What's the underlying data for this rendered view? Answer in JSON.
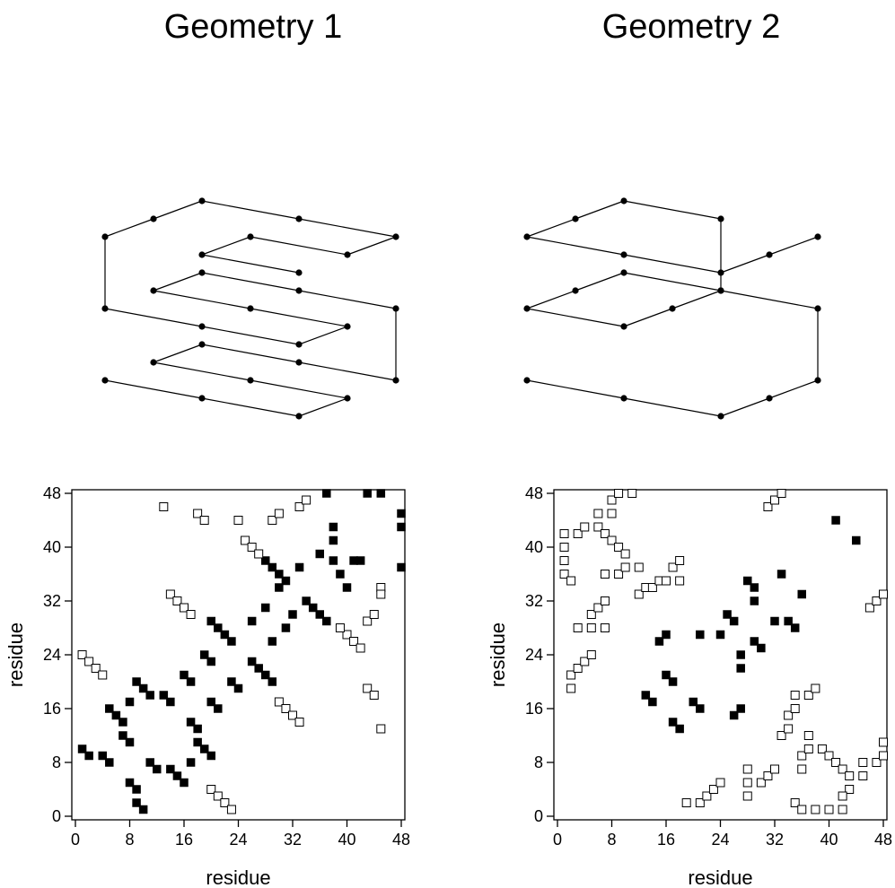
{
  "panels": [
    {
      "title": "Geometry 1"
    },
    {
      "title": "Geometry 2"
    }
  ],
  "chart_data": [
    {
      "type": "line",
      "title": "Geometry 1",
      "description_kind": "3d-lattice-chain",
      "points_3d": [
        [
          0,
          0,
          0
        ],
        [
          1,
          0,
          0
        ],
        [
          2,
          0,
          0
        ],
        [
          2,
          1,
          0
        ],
        [
          1,
          1,
          0
        ],
        [
          0,
          1,
          0
        ],
        [
          0,
          2,
          0
        ],
        [
          1,
          2,
          0
        ],
        [
          2,
          2,
          0
        ],
        [
          2,
          2,
          1
        ],
        [
          1,
          2,
          1
        ],
        [
          0,
          2,
          1
        ],
        [
          0,
          1,
          1
        ],
        [
          1,
          1,
          1
        ],
        [
          2,
          1,
          1
        ],
        [
          2,
          0,
          1
        ],
        [
          1,
          0,
          1
        ],
        [
          0,
          0,
          1
        ],
        [
          0,
          0,
          2
        ],
        [
          0,
          1,
          2
        ],
        [
          0,
          2,
          2
        ],
        [
          1,
          2,
          2
        ],
        [
          2,
          2,
          2
        ],
        [
          2,
          1,
          2
        ],
        [
          1,
          1,
          2
        ],
        [
          1,
          0,
          2
        ],
        [
          2,
          0,
          2
        ]
      ]
    },
    {
      "type": "line",
      "title": "Geometry 2",
      "description_kind": "3d-lattice-chain",
      "points_3d": [
        [
          0,
          0,
          0
        ],
        [
          1,
          0,
          0
        ],
        [
          2,
          0,
          0
        ],
        [
          2,
          1,
          0
        ],
        [
          2,
          2,
          0
        ],
        [
          2,
          2,
          1
        ],
        [
          1,
          2,
          1
        ],
        [
          0,
          2,
          1
        ],
        [
          0,
          1,
          1
        ],
        [
          0,
          0,
          1
        ],
        [
          1,
          0,
          1
        ],
        [
          1,
          1,
          1
        ],
        [
          1,
          2,
          1
        ],
        [
          1,
          2,
          2
        ],
        [
          0,
          2,
          2
        ],
        [
          0,
          1,
          2
        ],
        [
          0,
          0,
          2
        ],
        [
          1,
          0,
          2
        ],
        [
          2,
          0,
          2
        ],
        [
          2,
          1,
          2
        ],
        [
          2,
          2,
          2
        ]
      ]
    },
    {
      "type": "scatter",
      "title": "",
      "xlabel": "residue",
      "ylabel": "residue",
      "xlim": [
        0,
        48
      ],
      "ylim": [
        0,
        48
      ],
      "xticks": [
        0,
        8,
        16,
        24,
        32,
        40,
        48
      ],
      "yticks": [
        0,
        8,
        16,
        24,
        32,
        40,
        48
      ],
      "series": [
        {
          "marker": "filled-square",
          "color": "#000000",
          "points": [
            [
              1,
              10
            ],
            [
              2,
              9
            ],
            [
              4,
              9
            ],
            [
              5,
              8
            ],
            [
              5,
              16
            ],
            [
              6,
              15
            ],
            [
              7,
              14
            ],
            [
              7,
              12
            ],
            [
              8,
              11
            ],
            [
              8,
              5
            ],
            [
              9,
              4
            ],
            [
              9,
              2
            ],
            [
              10,
              1
            ],
            [
              8,
              17
            ],
            [
              9,
              20
            ],
            [
              10,
              19
            ],
            [
              11,
              18
            ],
            [
              11,
              8
            ],
            [
              12,
              7
            ],
            [
              13,
              18
            ],
            [
              14,
              17
            ],
            [
              14,
              7
            ],
            [
              15,
              6
            ],
            [
              16,
              5
            ],
            [
              16,
              21
            ],
            [
              17,
              20
            ],
            [
              17,
              14
            ],
            [
              18,
              13
            ],
            [
              18,
              11
            ],
            [
              19,
              10
            ],
            [
              20,
              9
            ],
            [
              17,
              8
            ],
            [
              19,
              24
            ],
            [
              20,
              23
            ],
            [
              20,
              17
            ],
            [
              21,
              16
            ],
            [
              20,
              29
            ],
            [
              21,
              28
            ],
            [
              22,
              27
            ],
            [
              23,
              26
            ],
            [
              23,
              20
            ],
            [
              24,
              19
            ],
            [
              26,
              29
            ],
            [
              26,
              23
            ],
            [
              27,
              22
            ],
            [
              28,
              21
            ],
            [
              29,
              20
            ],
            [
              28,
              31
            ],
            [
              29,
              26
            ],
            [
              27,
              39
            ],
            [
              28,
              38
            ],
            [
              29,
              37
            ],
            [
              30,
              36
            ],
            [
              31,
              35
            ],
            [
              30,
              34
            ],
            [
              31,
              28
            ],
            [
              32,
              30
            ],
            [
              33,
              37
            ],
            [
              34,
              32
            ],
            [
              35,
              31
            ],
            [
              36,
              30
            ],
            [
              37,
              29
            ],
            [
              36,
              39
            ],
            [
              38,
              41
            ],
            [
              38,
              43
            ],
            [
              38,
              38
            ],
            [
              39,
              36
            ],
            [
              40,
              34
            ],
            [
              41,
              38
            ],
            [
              42,
              38
            ],
            [
              37,
              48
            ],
            [
              43,
              48
            ],
            [
              45,
              48
            ],
            [
              48,
              45
            ],
            [
              48,
              43
            ],
            [
              48,
              37
            ]
          ]
        },
        {
          "marker": "open-square",
          "color": "#000000",
          "points": [
            [
              1,
              24
            ],
            [
              2,
              23
            ],
            [
              3,
              22
            ],
            [
              4,
              21
            ],
            [
              13,
              46
            ],
            [
              18,
              45
            ],
            [
              19,
              44
            ],
            [
              24,
              44
            ],
            [
              25,
              41
            ],
            [
              26,
              40
            ],
            [
              27,
              39
            ],
            [
              29,
              44
            ],
            [
              30,
              45
            ],
            [
              33,
              46
            ],
            [
              34,
              47
            ],
            [
              14,
              33
            ],
            [
              15,
              32
            ],
            [
              16,
              31
            ],
            [
              17,
              30
            ],
            [
              30,
              17
            ],
            [
              31,
              16
            ],
            [
              32,
              15
            ],
            [
              33,
              14
            ],
            [
              20,
              4
            ],
            [
              21,
              3
            ],
            [
              22,
              2
            ],
            [
              23,
              1
            ],
            [
              40,
              27
            ],
            [
              41,
              26
            ],
            [
              42,
              25
            ],
            [
              39,
              28
            ],
            [
              43,
              29
            ],
            [
              44,
              30
            ],
            [
              43,
              19
            ],
            [
              44,
              18
            ],
            [
              45,
              13
            ],
            [
              45,
              34
            ],
            [
              45,
              33
            ]
          ]
        }
      ]
    },
    {
      "type": "scatter",
      "title": "",
      "xlabel": "residue",
      "ylabel": "residue",
      "xlim": [
        0,
        48
      ],
      "ylim": [
        0,
        48
      ],
      "xticks": [
        0,
        8,
        16,
        24,
        32,
        40,
        48
      ],
      "yticks": [
        0,
        8,
        16,
        24,
        32,
        40,
        48
      ],
      "series": [
        {
          "marker": "filled-square",
          "color": "#000000",
          "points": [
            [
              13,
              18
            ],
            [
              14,
              17
            ],
            [
              15,
              26
            ],
            [
              16,
              27
            ],
            [
              16,
              21
            ],
            [
              17,
              20
            ],
            [
              17,
              14
            ],
            [
              18,
              13
            ],
            [
              20,
              17
            ],
            [
              21,
              16
            ],
            [
              21,
              27
            ],
            [
              24,
              27
            ],
            [
              25,
              30
            ],
            [
              26,
              29
            ],
            [
              26,
              15
            ],
            [
              27,
              16
            ],
            [
              27,
              24
            ],
            [
              27,
              22
            ],
            [
              28,
              35
            ],
            [
              29,
              34
            ],
            [
              29,
              32
            ],
            [
              29,
              26
            ],
            [
              30,
              25
            ],
            [
              32,
              29
            ],
            [
              33,
              36
            ],
            [
              34,
              29
            ],
            [
              35,
              28
            ],
            [
              36,
              33
            ],
            [
              41,
              44
            ],
            [
              44,
              41
            ]
          ]
        },
        {
          "marker": "open-square",
          "color": "#000000",
          "points": [
            [
              1,
              42
            ],
            [
              1,
              40
            ],
            [
              1,
              38
            ],
            [
              1,
              36
            ],
            [
              2,
              35
            ],
            [
              2,
              21
            ],
            [
              2,
              19
            ],
            [
              3,
              42
            ],
            [
              4,
              43
            ],
            [
              3,
              28
            ],
            [
              3,
              22
            ],
            [
              4,
              23
            ],
            [
              5,
              24
            ],
            [
              5,
              28
            ],
            [
              5,
              30
            ],
            [
              6,
              31
            ],
            [
              7,
              28
            ],
            [
              7,
              32
            ],
            [
              6,
              45
            ],
            [
              6,
              43
            ],
            [
              7,
              42
            ],
            [
              8,
              41
            ],
            [
              8,
              45
            ],
            [
              8,
              47
            ],
            [
              9,
              48
            ],
            [
              9,
              36
            ],
            [
              9,
              40
            ],
            [
              10,
              37
            ],
            [
              10,
              39
            ],
            [
              11,
              48
            ],
            [
              12,
              37
            ],
            [
              12,
              33
            ],
            [
              13,
              34
            ],
            [
              14,
              34
            ],
            [
              15,
              35
            ],
            [
              16,
              35
            ],
            [
              17,
              37
            ],
            [
              18,
              38
            ],
            [
              18,
              35
            ],
            [
              7,
              36
            ],
            [
              19,
              2
            ],
            [
              21,
              2
            ],
            [
              22,
              3
            ],
            [
              23,
              4
            ],
            [
              24,
              5
            ],
            [
              28,
              7
            ],
            [
              28,
              5
            ],
            [
              28,
              3
            ],
            [
              30,
              5
            ],
            [
              31,
              6
            ],
            [
              32,
              7
            ],
            [
              31,
              46
            ],
            [
              32,
              47
            ],
            [
              33,
              48
            ],
            [
              33,
              12
            ],
            [
              34,
              13
            ],
            [
              34,
              15
            ],
            [
              35,
              16
            ],
            [
              35,
              18
            ],
            [
              37,
              18
            ],
            [
              38,
              19
            ],
            [
              35,
              2
            ],
            [
              36,
              1
            ],
            [
              38,
              1
            ],
            [
              40,
              1
            ],
            [
              42,
              1
            ],
            [
              36,
              7
            ],
            [
              36,
              9
            ],
            [
              37,
              10
            ],
            [
              37,
              12
            ],
            [
              39,
              10
            ],
            [
              40,
              9
            ],
            [
              41,
              8
            ],
            [
              42,
              7
            ],
            [
              43,
              6
            ],
            [
              43,
              4
            ],
            [
              42,
              3
            ],
            [
              45,
              8
            ],
            [
              45,
              6
            ],
            [
              47,
              8
            ],
            [
              48,
              9
            ],
            [
              48,
              11
            ],
            [
              46,
              31
            ],
            [
              47,
              32
            ],
            [
              48,
              33
            ]
          ]
        }
      ]
    }
  ]
}
